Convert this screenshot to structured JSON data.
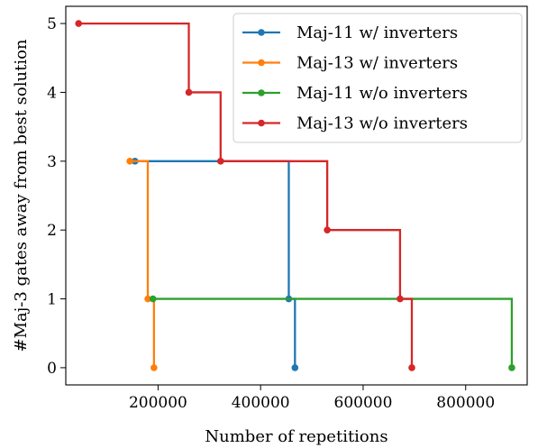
{
  "chart_data": {
    "type": "line",
    "drawstyle": "steps-post",
    "xlabel": "Number of repetitions",
    "ylabel": "#Maj-3 gates away from best solution",
    "xlim": [
      20000,
      920000
    ],
    "ylim": [
      -0.25,
      5.25
    ],
    "xticks": [
      200000,
      400000,
      600000,
      800000
    ],
    "xtick_labels": [
      "200000",
      "400000",
      "600000",
      "800000"
    ],
    "yticks": [
      0,
      1,
      2,
      3,
      4,
      5
    ],
    "ytick_labels": [
      "0",
      "1",
      "2",
      "3",
      "4",
      "5"
    ],
    "grid": false,
    "legend_position": "upper right",
    "series": [
      {
        "name": "Maj-11 w/ inverters",
        "color": "#1f77b4",
        "points": [
          [
            155000,
            3
          ],
          [
            455000,
            1
          ],
          [
            467000,
            0
          ]
        ]
      },
      {
        "name": "Maj-13 w/ inverters",
        "color": "#ff7f0e",
        "points": [
          [
            145000,
            3
          ],
          [
            180000,
            1
          ],
          [
            192000,
            0
          ]
        ]
      },
      {
        "name": "Maj-11 w/o inverters",
        "color": "#2ca02c",
        "points": [
          [
            190000,
            1
          ],
          [
            890000,
            0
          ]
        ]
      },
      {
        "name": "Maj-13 w/o inverters",
        "color": "#d62728",
        "points": [
          [
            45000,
            5
          ],
          [
            260000,
            4
          ],
          [
            322000,
            3
          ],
          [
            530000,
            2
          ],
          [
            672000,
            1
          ],
          [
            695000,
            0
          ]
        ]
      }
    ]
  }
}
